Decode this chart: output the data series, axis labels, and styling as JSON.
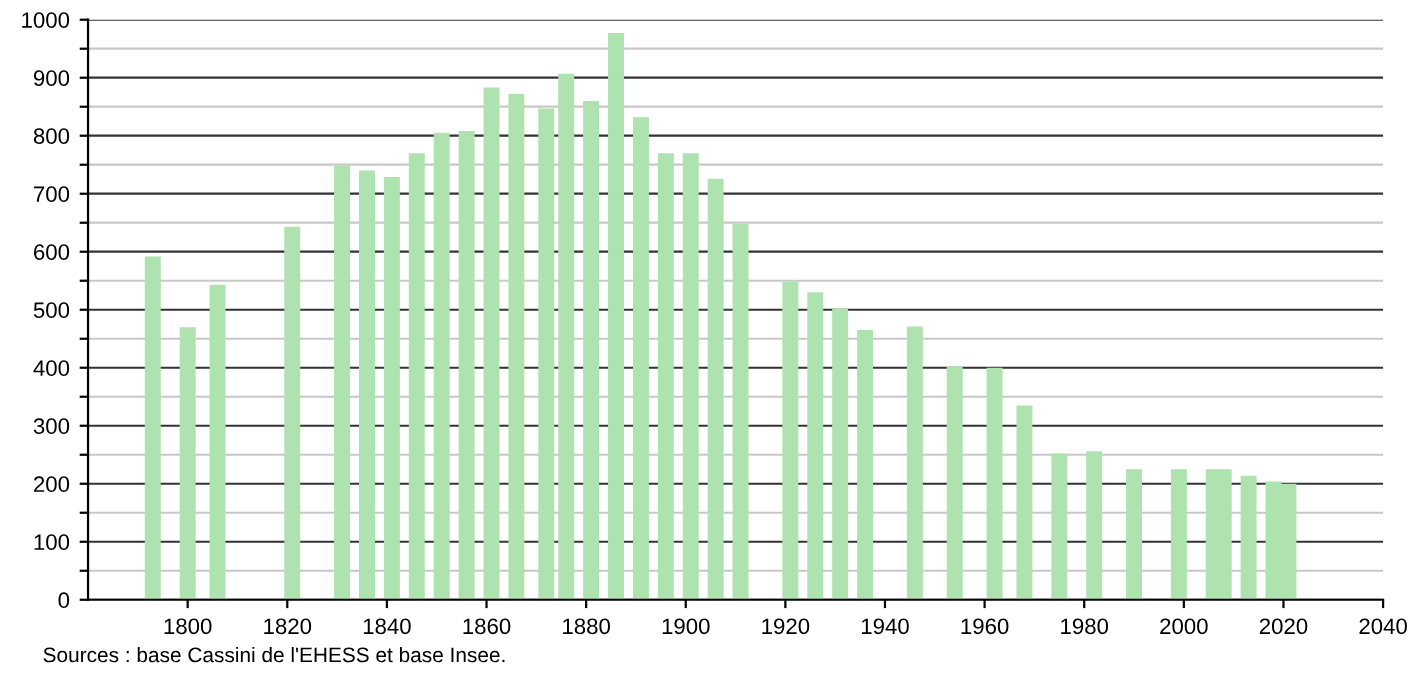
{
  "chart_data": {
    "type": "bar",
    "x": [
      1793,
      1800,
      1806,
      1821,
      1831,
      1836,
      1841,
      1846,
      1851,
      1856,
      1861,
      1866,
      1872,
      1876,
      1881,
      1886,
      1891,
      1896,
      1901,
      1906,
      1911,
      1921,
      1926,
      1931,
      1936,
      1946,
      1954,
      1962,
      1968,
      1975,
      1982,
      1990,
      1999,
      2006,
      2008,
      2013,
      2018,
      2021
    ],
    "values": [
      592,
      470,
      543,
      643,
      748,
      740,
      729,
      770,
      805,
      808,
      883,
      872,
      847,
      907,
      860,
      977,
      832,
      770,
      770,
      726,
      648,
      548,
      530,
      502,
      465,
      471,
      402,
      400,
      335,
      252,
      256,
      225,
      225,
      225,
      225,
      214,
      204,
      200
    ],
    "color": "#aee2ae",
    "xlim": [
      1780,
      2040
    ],
    "xticks": [
      1800,
      1820,
      1840,
      1860,
      1880,
      1900,
      1920,
      1940,
      1960,
      1980,
      2000,
      2020,
      2040
    ],
    "ylim": [
      0,
      1000
    ],
    "yticks": [
      0,
      {
        "value": 50,
        "label": null
      },
      100,
      {
        "value": 150,
        "label": null
      },
      200,
      {
        "value": 250,
        "label": null
      },
      300,
      {
        "value": 350,
        "label": null
      },
      400,
      {
        "value": 450,
        "label": null
      },
      500,
      {
        "value": 550,
        "label": null
      },
      600,
      {
        "value": 650,
        "label": null
      },
      700,
      {
        "value": 750,
        "label": null
      },
      800,
      {
        "value": 850,
        "label": null
      },
      900,
      {
        "value": 950,
        "label": null
      },
      1000
    ],
    "grid": "y",
    "annotations": [
      "Sources : base Cassini de l'EHESS et base Insee."
    ]
  }
}
